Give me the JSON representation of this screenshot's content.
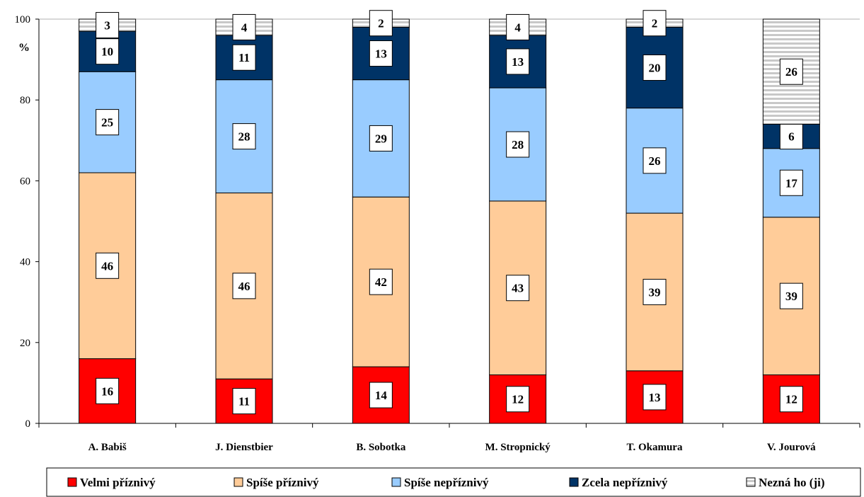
{
  "chart_data": {
    "type": "bar",
    "stacked": true,
    "ylabel": "%",
    "ylim": [
      0,
      100
    ],
    "yticks": [
      0,
      20,
      40,
      60,
      80,
      100
    ],
    "grid": false,
    "legend_position": "bottom",
    "categories": [
      "A. Babiš",
      "J. Dienstbier",
      "B. Sobotka",
      "M. Stropnický",
      "T. Okamura",
      "V. Jourová"
    ],
    "series": [
      {
        "name": "Velmi příznivý",
        "color": "#ff0000",
        "values": [
          16,
          11,
          14,
          12,
          13,
          12
        ]
      },
      {
        "name": "Spíše příznivý",
        "color": "#ffcc99",
        "values": [
          46,
          46,
          42,
          43,
          39,
          39
        ]
      },
      {
        "name": "Spíše nepříznivý",
        "color": "#99ccff",
        "values": [
          25,
          28,
          29,
          28,
          26,
          17
        ]
      },
      {
        "name": "Zcela nepříznivý",
        "color": "#003366",
        "values": [
          10,
          11,
          13,
          13,
          20,
          6
        ]
      },
      {
        "name": "Nezná ho (ji)",
        "color": "#dddddd",
        "pattern": "horizontal-stripes",
        "values": [
          3,
          4,
          2,
          4,
          2,
          26
        ]
      }
    ]
  }
}
